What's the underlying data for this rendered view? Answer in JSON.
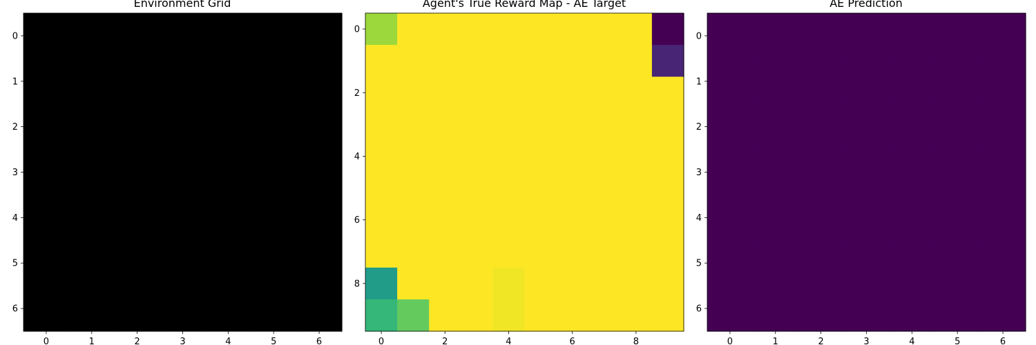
{
  "chart_data": [
    {
      "type": "heatmap",
      "title": "Environment Grid",
      "colormap": "gray-black",
      "x_ticks": [
        "0",
        "1",
        "2",
        "3",
        "4",
        "5",
        "6"
      ],
      "y_ticks": [
        "0",
        "1",
        "2",
        "3",
        "4",
        "5",
        "6"
      ],
      "rows": 7,
      "cols": 7,
      "values": [
        [
          0,
          0,
          0,
          0,
          0,
          0,
          0
        ],
        [
          0,
          0,
          0,
          0,
          0,
          0,
          0
        ],
        [
          0,
          0,
          0,
          0,
          0,
          0,
          0
        ],
        [
          0,
          0,
          0,
          0,
          0,
          0,
          0
        ],
        [
          0,
          0,
          0,
          0,
          0,
          0,
          0
        ],
        [
          0,
          0,
          0,
          0,
          0,
          0,
          0
        ],
        [
          0,
          0,
          0,
          0,
          0,
          0,
          0
        ]
      ]
    },
    {
      "type": "heatmap",
      "title": "Agent's True Reward Map - AE Target",
      "colormap": "viridis",
      "x_ticks": [
        "0",
        "2",
        "4",
        "6",
        "8"
      ],
      "y_ticks": [
        "0",
        "2",
        "4",
        "6",
        "8"
      ],
      "rows": 10,
      "cols": 10,
      "values": [
        [
          0.92,
          1,
          1,
          1,
          1,
          1,
          1,
          1,
          1,
          0.0
        ],
        [
          1,
          1,
          1,
          1,
          1,
          1,
          1,
          1,
          1,
          0.12
        ],
        [
          1,
          1,
          1,
          1,
          1,
          1,
          1,
          1,
          1,
          1
        ],
        [
          1,
          1,
          1,
          1,
          1,
          1,
          1,
          1,
          1,
          1
        ],
        [
          1,
          1,
          1,
          1,
          1,
          1,
          1,
          1,
          1,
          1
        ],
        [
          1,
          1,
          1,
          1,
          1,
          1,
          1,
          1,
          1,
          1
        ],
        [
          1,
          1,
          1,
          1,
          1,
          1,
          1,
          1,
          1,
          1
        ],
        [
          1,
          1,
          1,
          1,
          1,
          1,
          1,
          1,
          1,
          1
        ],
        [
          0.62,
          1,
          1,
          1,
          0.99,
          1,
          1,
          1,
          1,
          1
        ],
        [
          0.75,
          0.86,
          1,
          1,
          0.99,
          1,
          1,
          1,
          1,
          1
        ]
      ]
    },
    {
      "type": "heatmap",
      "title": "AE Prediction",
      "colormap": "viridis",
      "x_ticks": [
        "0",
        "1",
        "2",
        "3",
        "4",
        "5",
        "6"
      ],
      "y_ticks": [
        "0",
        "1",
        "2",
        "3",
        "4",
        "5",
        "6"
      ],
      "rows": 7,
      "cols": 7,
      "values": [
        [
          0,
          0,
          0,
          0,
          0,
          0,
          0
        ],
        [
          0,
          0,
          0,
          0,
          0,
          0,
          0
        ],
        [
          0,
          0,
          0,
          0,
          0,
          0,
          0
        ],
        [
          0,
          0,
          0,
          0,
          0,
          0,
          0
        ],
        [
          0,
          0,
          0,
          0,
          0,
          0,
          0
        ],
        [
          0,
          0,
          0,
          0,
          0,
          0,
          0
        ],
        [
          0,
          0,
          0,
          0,
          0,
          0,
          0
        ]
      ]
    }
  ]
}
